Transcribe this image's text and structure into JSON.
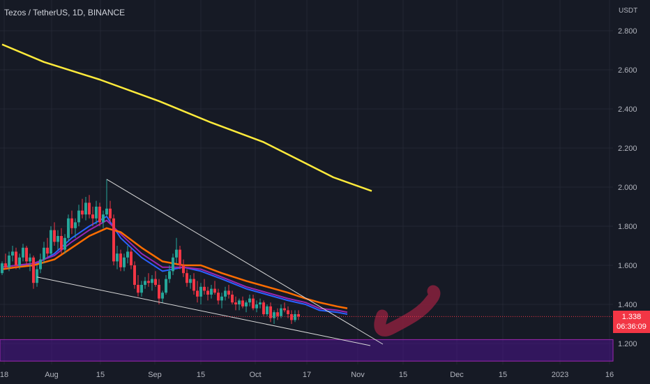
{
  "header": {
    "title": "Tezos / TetherUS, 1D, BINANCE"
  },
  "price_axis": {
    "currency": "USDT",
    "ticks": [
      "2.800",
      "2.600",
      "2.400",
      "2.200",
      "2.000",
      "1.800",
      "1.600",
      "1.400",
      "1.200"
    ]
  },
  "time_axis": {
    "ticks": [
      "18",
      "Aug",
      "15",
      "Sep",
      "15",
      "Oct",
      "17",
      "Nov",
      "15",
      "Dec",
      "15",
      "2023",
      "16"
    ]
  },
  "last_price": {
    "value": "1.338",
    "countdown": "06:36:09"
  },
  "colors": {
    "background": "#161a25",
    "grid": "#232733",
    "bull": "#26a69a",
    "bear": "#f23645",
    "ma_long": "#ffeb3b",
    "ema_fast": "#2962ff",
    "ema_mid": "#9c27b0",
    "ema_slow": "#ff6d00",
    "wedge": "#d9d9d9",
    "zone": "#4a148c",
    "arrow": "#88213d"
  },
  "chart_data": {
    "type": "candlestick",
    "title": "Tezos / TetherUS, 1D, BINANCE",
    "ylim": [
      1.1,
      2.95
    ],
    "x_ticks": [
      "18",
      "Aug",
      "15",
      "Sep",
      "15",
      "Oct",
      "17",
      "Nov",
      "15",
      "Dec",
      "15",
      "2023",
      "16"
    ],
    "x_tick_dates": [
      "2022-07-18",
      "2022-08-01",
      "2022-08-15",
      "2022-09-01",
      "2022-09-15",
      "2022-10-01",
      "2022-10-17",
      "2022-11-01",
      "2022-11-15",
      "2022-12-01",
      "2022-12-15",
      "2023-01-01",
      "2023-01-16"
    ],
    "y_ticks": [
      1.2,
      1.4,
      1.6,
      1.8,
      2.0,
      2.2,
      2.4,
      2.6,
      2.8
    ],
    "last_close": 1.338,
    "ohlc_start_date": "2022-07-11",
    "ohlc": [
      [
        1.56,
        1.62,
        1.55,
        1.61
      ],
      [
        1.61,
        1.66,
        1.58,
        1.59
      ],
      [
        1.59,
        1.67,
        1.57,
        1.65
      ],
      [
        1.65,
        1.7,
        1.62,
        1.67
      ],
      [
        1.67,
        1.69,
        1.58,
        1.6
      ],
      [
        1.6,
        1.66,
        1.58,
        1.64
      ],
      [
        1.64,
        1.71,
        1.62,
        1.69
      ],
      [
        1.69,
        1.7,
        1.6,
        1.62
      ],
      [
        1.62,
        1.66,
        1.57,
        1.64
      ],
      [
        1.64,
        1.65,
        1.48,
        1.51
      ],
      [
        1.51,
        1.6,
        1.49,
        1.58
      ],
      [
        1.58,
        1.66,
        1.56,
        1.63
      ],
      [
        1.63,
        1.72,
        1.61,
        1.69
      ],
      [
        1.69,
        1.74,
        1.64,
        1.66
      ],
      [
        1.66,
        1.8,
        1.65,
        1.78
      ],
      [
        1.78,
        1.82,
        1.7,
        1.72
      ],
      [
        1.72,
        1.78,
        1.68,
        1.75
      ],
      [
        1.75,
        1.79,
        1.66,
        1.68
      ],
      [
        1.68,
        1.76,
        1.66,
        1.74
      ],
      [
        1.74,
        1.86,
        1.72,
        1.84
      ],
      [
        1.84,
        1.88,
        1.76,
        1.79
      ],
      [
        1.79,
        1.84,
        1.74,
        1.82
      ],
      [
        1.82,
        1.91,
        1.8,
        1.88
      ],
      [
        1.88,
        1.94,
        1.84,
        1.86
      ],
      [
        1.86,
        1.95,
        1.83,
        1.92
      ],
      [
        1.92,
        1.96,
        1.84,
        1.86
      ],
      [
        1.86,
        1.9,
        1.8,
        1.84
      ],
      [
        1.84,
        1.93,
        1.81,
        1.9
      ],
      [
        1.9,
        1.92,
        1.8,
        1.82
      ],
      [
        1.82,
        1.88,
        1.79,
        1.86
      ],
      [
        1.86,
        2.04,
        1.85,
        1.89
      ],
      [
        1.89,
        1.93,
        1.82,
        1.84
      ],
      [
        1.84,
        1.86,
        1.6,
        1.62
      ],
      [
        1.62,
        1.7,
        1.58,
        1.66
      ],
      [
        1.66,
        1.68,
        1.57,
        1.59
      ],
      [
        1.59,
        1.66,
        1.57,
        1.64
      ],
      [
        1.64,
        1.7,
        1.61,
        1.67
      ],
      [
        1.67,
        1.69,
        1.58,
        1.6
      ],
      [
        1.6,
        1.62,
        1.48,
        1.5
      ],
      [
        1.5,
        1.55,
        1.44,
        1.46
      ],
      [
        1.46,
        1.52,
        1.44,
        1.5
      ],
      [
        1.5,
        1.54,
        1.48,
        1.52
      ],
      [
        1.52,
        1.56,
        1.49,
        1.51
      ],
      [
        1.51,
        1.55,
        1.47,
        1.53
      ],
      [
        1.53,
        1.57,
        1.49,
        1.5
      ],
      [
        1.5,
        1.53,
        1.4,
        1.43
      ],
      [
        1.43,
        1.47,
        1.41,
        1.46
      ],
      [
        1.46,
        1.55,
        1.45,
        1.53
      ],
      [
        1.53,
        1.6,
        1.51,
        1.57
      ],
      [
        1.57,
        1.66,
        1.55,
        1.64
      ],
      [
        1.64,
        1.74,
        1.61,
        1.68
      ],
      [
        1.68,
        1.7,
        1.58,
        1.6
      ],
      [
        1.6,
        1.63,
        1.54,
        1.56
      ],
      [
        1.56,
        1.58,
        1.49,
        1.51
      ],
      [
        1.51,
        1.55,
        1.48,
        1.53
      ],
      [
        1.53,
        1.56,
        1.45,
        1.47
      ],
      [
        1.47,
        1.52,
        1.41,
        1.44
      ],
      [
        1.44,
        1.51,
        1.4,
        1.49
      ],
      [
        1.49,
        1.53,
        1.45,
        1.47
      ],
      [
        1.47,
        1.49,
        1.42,
        1.45
      ],
      [
        1.45,
        1.5,
        1.43,
        1.48
      ],
      [
        1.48,
        1.52,
        1.45,
        1.46
      ],
      [
        1.46,
        1.48,
        1.4,
        1.42
      ],
      [
        1.42,
        1.46,
        1.38,
        1.44
      ],
      [
        1.44,
        1.49,
        1.42,
        1.47
      ],
      [
        1.47,
        1.5,
        1.43,
        1.45
      ],
      [
        1.45,
        1.47,
        1.4,
        1.41
      ],
      [
        1.41,
        1.44,
        1.37,
        1.4
      ],
      [
        1.4,
        1.43,
        1.37,
        1.42
      ],
      [
        1.42,
        1.44,
        1.38,
        1.39
      ],
      [
        1.39,
        1.42,
        1.36,
        1.41
      ],
      [
        1.41,
        1.45,
        1.39,
        1.43
      ],
      [
        1.43,
        1.45,
        1.37,
        1.38
      ],
      [
        1.38,
        1.42,
        1.36,
        1.4
      ],
      [
        1.4,
        1.43,
        1.38,
        1.41
      ],
      [
        1.41,
        1.42,
        1.34,
        1.35
      ],
      [
        1.35,
        1.4,
        1.34,
        1.39
      ],
      [
        1.39,
        1.41,
        1.31,
        1.33
      ],
      [
        1.33,
        1.37,
        1.3,
        1.36
      ],
      [
        1.36,
        1.38,
        1.32,
        1.34
      ],
      [
        1.34,
        1.4,
        1.33,
        1.38
      ],
      [
        1.38,
        1.41,
        1.36,
        1.37
      ],
      [
        1.37,
        1.39,
        1.33,
        1.35
      ],
      [
        1.35,
        1.37,
        1.3,
        1.32
      ],
      [
        1.32,
        1.37,
        1.31,
        1.35
      ],
      [
        1.35,
        1.37,
        1.32,
        1.338
      ]
    ],
    "series": [
      {
        "type": "line",
        "values": [
          [
            0,
            2.73
          ],
          [
            12,
            2.64
          ],
          [
            28,
            2.55
          ],
          [
            45,
            2.44
          ],
          [
            60,
            2.33
          ],
          [
            75,
            2.23
          ],
          [
            85,
            2.14
          ],
          [
            95,
            2.05
          ],
          [
            106,
            1.98
          ]
        ]
      },
      {
        "type": "line",
        "values": [
          [
            0,
            1.59
          ],
          [
            4,
            1.6
          ],
          [
            9,
            1.6
          ],
          [
            15,
            1.66
          ],
          [
            20,
            1.74
          ],
          [
            25,
            1.8
          ],
          [
            30,
            1.85
          ],
          [
            34,
            1.74
          ],
          [
            40,
            1.64
          ],
          [
            46,
            1.57
          ],
          [
            52,
            1.59
          ],
          [
            57,
            1.57
          ],
          [
            63,
            1.53
          ],
          [
            70,
            1.48
          ],
          [
            76,
            1.45
          ],
          [
            82,
            1.42
          ],
          [
            87,
            1.4
          ],
          [
            91,
            1.37
          ],
          [
            96,
            1.36
          ],
          [
            99,
            1.35
          ]
        ]
      },
      {
        "type": "line",
        "values": [
          [
            0,
            1.59
          ],
          [
            4,
            1.6
          ],
          [
            9,
            1.61
          ],
          [
            15,
            1.65
          ],
          [
            20,
            1.72
          ],
          [
            25,
            1.78
          ],
          [
            30,
            1.83
          ],
          [
            34,
            1.76
          ],
          [
            40,
            1.66
          ],
          [
            46,
            1.59
          ],
          [
            52,
            1.59
          ],
          [
            57,
            1.58
          ],
          [
            63,
            1.54
          ],
          [
            70,
            1.49
          ],
          [
            76,
            1.46
          ],
          [
            82,
            1.43
          ],
          [
            87,
            1.41
          ],
          [
            91,
            1.38
          ],
          [
            96,
            1.37
          ],
          [
            99,
            1.36
          ]
        ]
      },
      {
        "type": "line",
        "values": [
          [
            0,
            1.58
          ],
          [
            4,
            1.59
          ],
          [
            9,
            1.6
          ],
          [
            15,
            1.63
          ],
          [
            20,
            1.69
          ],
          [
            25,
            1.75
          ],
          [
            30,
            1.79
          ],
          [
            34,
            1.77
          ],
          [
            40,
            1.69
          ],
          [
            46,
            1.62
          ],
          [
            52,
            1.6
          ],
          [
            57,
            1.6
          ],
          [
            63,
            1.56
          ],
          [
            70,
            1.52
          ],
          [
            76,
            1.49
          ],
          [
            82,
            1.46
          ],
          [
            87,
            1.43
          ],
          [
            91,
            1.41
          ],
          [
            96,
            1.39
          ],
          [
            99,
            1.38
          ]
        ]
      }
    ],
    "drawings": {
      "wedge_upper": [
        [
          30,
          2.04
        ],
        [
          125,
          1.2
        ]
      ],
      "wedge_lower": [
        [
          10,
          1.54
        ],
        [
          121,
          1.2
        ]
      ],
      "support_zone": [
        1.11,
        1.22
      ]
    }
  }
}
